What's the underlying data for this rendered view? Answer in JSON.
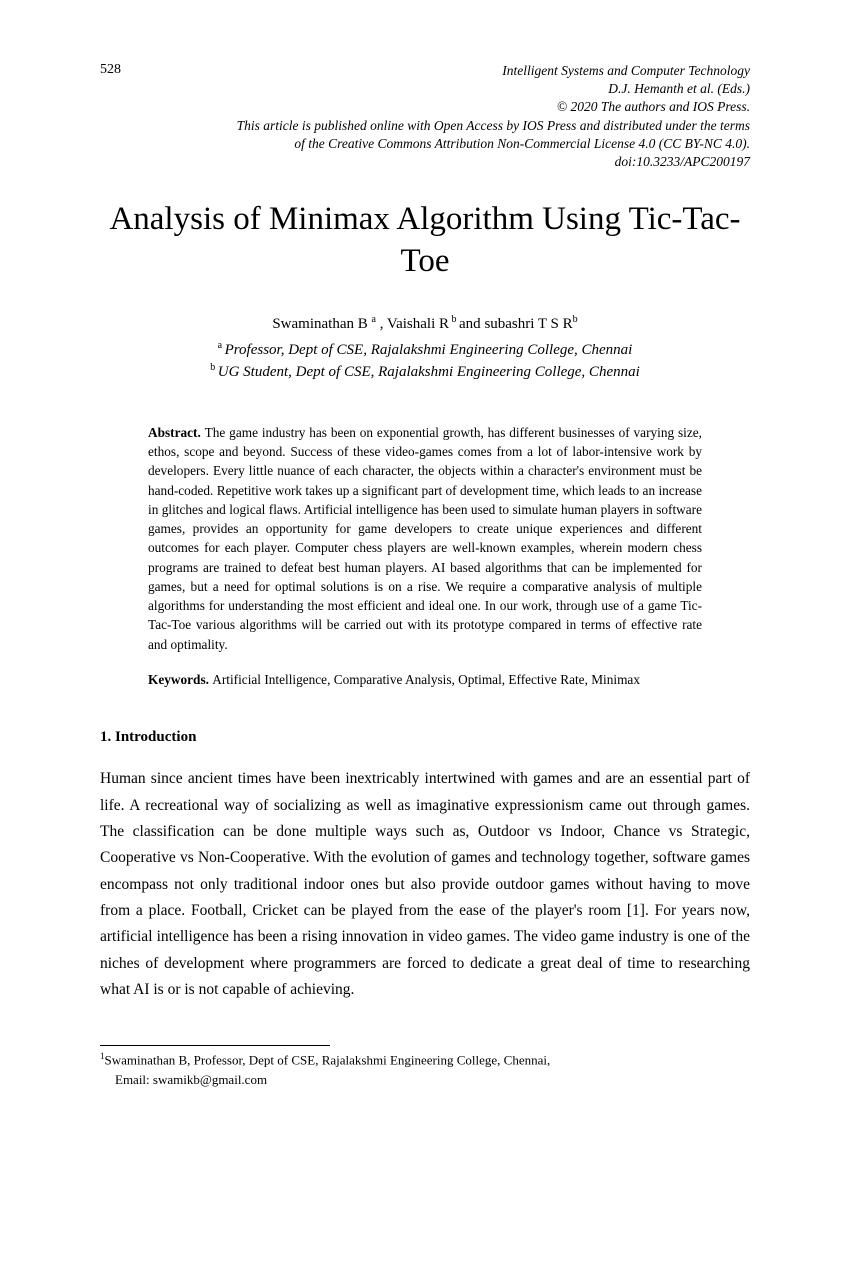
{
  "page_number": "528",
  "header": {
    "line1": "Intelligent Systems and Computer Technology",
    "line2": "D.J. Hemanth et al. (Eds.)",
    "line3": "© 2020 The authors and IOS Press.",
    "line4": "This article is published online with Open Access by IOS Press and distributed under the terms",
    "line5": "of the Creative Commons Attribution Non-Commercial License 4.0 (CC BY-NC 4.0).",
    "line6": "doi:10.3233/APC200197"
  },
  "title": "Analysis of Minimax Algorithm Using Tic-Tac-Toe",
  "authors": {
    "a1_name": "Swaminathan B ",
    "a1_sup": "a",
    "sep1": " , ",
    "a2_name": "Vaishali R",
    "a2_sup": " b ",
    "sep2": "and ",
    "a3_name": "subashri T S R",
    "a3_sup": "b"
  },
  "affiliations": {
    "aff_a_sup": "a ",
    "aff_a": "Professor, Dept of CSE, Rajalakshmi Engineering College, Chennai",
    "aff_b_sup": "b ",
    "aff_b": "UG Student, Dept of CSE, Rajalakshmi Engineering College, Chennai"
  },
  "abstract": {
    "label": "Abstract. ",
    "text": "The game industry has been on exponential growth, has different businesses of varying size, ethos, scope and beyond. Success of these video-games comes from a lot of labor-intensive work by developers. Every little nuance of each character, the objects within a character's environment must be hand-coded. Repetitive work takes up a significant part of development time, which leads to an increase in glitches and logical flaws. Artificial intelligence has been used to simulate human players in software games, provides an opportunity for game developers to create unique experiences and different outcomes for each player. Computer chess players are well-known examples, wherein modern chess programs are trained to defeat best human players. AI based algorithms that can be implemented for games, but a need for optimal solutions is on a rise. We require a comparative analysis of multiple algorithms for understanding the most efficient and ideal one. In our work, through use of a game Tic-Tac-Toe various algorithms will be carried out with its prototype compared in terms of effective rate and optimality."
  },
  "keywords": {
    "label": "Keywords. ",
    "text": "Artificial Intelligence, Comparative Analysis, Optimal, Effective Rate, Minimax"
  },
  "section1": {
    "heading": "1. Introduction",
    "body": "Human since ancient times have been inextricably intertwined with games and are an essential part of life. A recreational way of socializing as well as imaginative expressionism came out through games. The classification can be done multiple ways such as, Outdoor vs Indoor, Chance vs Strategic, Cooperative vs Non-Cooperative. With the evolution of games and technology together, software games encompass not only traditional indoor ones but also provide outdoor games without having to move from a place. Football, Cricket can be played from the ease of the player's room [1]. For years now, artificial intelligence has been a rising innovation in video games. The video game industry is one of the niches of development where programmers are forced to dedicate a great deal of time to researching what AI is or is not capable of achieving."
  },
  "footnote": {
    "sup": "1",
    "line1": "Swaminathan B, Professor, Dept of CSE, Rajalakshmi Engineering College, Chennai,",
    "line2": "Email: swamikb@gmail.com"
  }
}
